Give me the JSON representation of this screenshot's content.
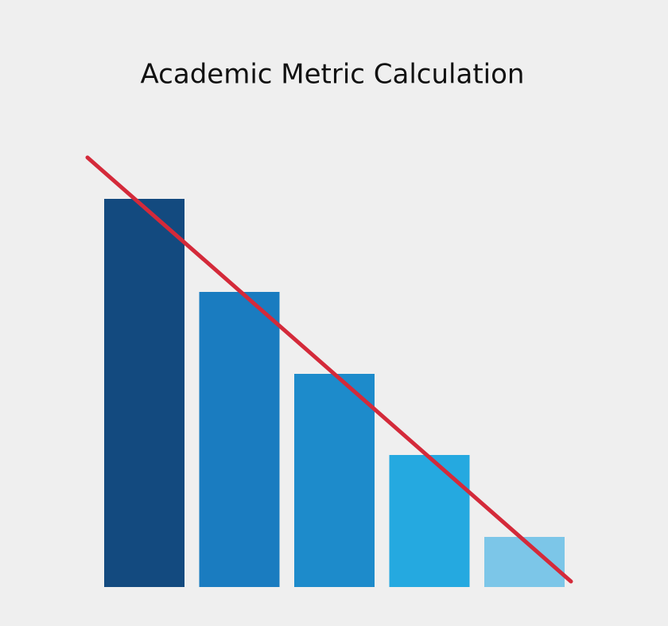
{
  "chart_data": {
    "type": "bar",
    "title": "Academic Metric Calculation",
    "categories": [
      null,
      null,
      null,
      null,
      null
    ],
    "values": [
      97.6,
      74.2,
      53.6,
      33.2,
      12.6
    ],
    "colors": [
      "#134a7f",
      "#1a7cc0",
      "#1d8bcb",
      "#25a9e0",
      "#7cc6e8"
    ],
    "ylim": [
      0,
      110
    ],
    "grid": false
  }
}
